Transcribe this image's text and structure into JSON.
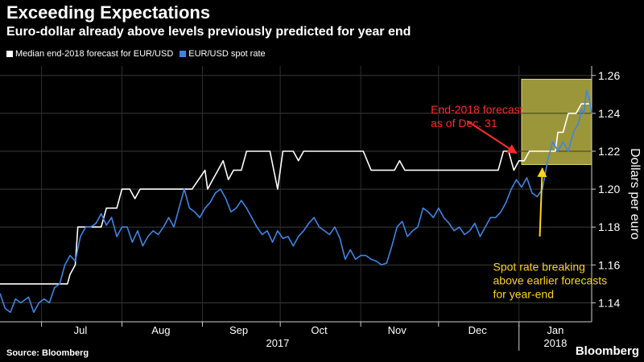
{
  "header": {
    "title": "Exceeding Expectations",
    "subtitle": "Euro-dollar already above levels previously predicted for year end"
  },
  "footer": {
    "source": "Source: Bloomberg",
    "brand": "Bloomberg"
  },
  "colors": {
    "background": "#000000",
    "forecast": "#ffffff",
    "spot": "#3d86e6",
    "highlight": "#c8c04a",
    "annotation_red": "#ff2a2a",
    "annotation_yellow": "#ffd21f"
  },
  "chart_data": {
    "type": "line",
    "title": "Exceeding Expectations",
    "subtitle": "Euro-dollar already above levels previously predicted for year end",
    "ylabel": "Dollars per euro",
    "ylim": [
      1.13,
      1.265
    ],
    "yticks": [
      1.14,
      1.16,
      1.18,
      1.2,
      1.22,
      1.24,
      1.26
    ],
    "ytick_labels": [
      "1.14",
      "1.16",
      "1.18",
      "1.20",
      "1.22",
      "1.24",
      "1.26"
    ],
    "xlim": [
      "2017-06-15",
      "2018-01-29"
    ],
    "month_ticks": [
      {
        "label": "Jul",
        "date": "2017-07-01",
        "center": "2017-07-16"
      },
      {
        "label": "Aug",
        "date": "2017-08-01",
        "center": "2017-08-16"
      },
      {
        "label": "Sep",
        "date": "2017-09-01",
        "center": "2017-09-15"
      },
      {
        "label": "Oct",
        "date": "2017-10-01",
        "center": "2017-10-16"
      },
      {
        "label": "Nov",
        "date": "2017-11-01",
        "center": "2017-11-15"
      },
      {
        "label": "Dec",
        "date": "2017-12-01",
        "center": "2017-12-16"
      },
      {
        "label": "Jan",
        "date": "2018-01-01",
        "center": "2018-01-15"
      }
    ],
    "year_labels": [
      {
        "label": "2017",
        "date": "2017-09-30"
      },
      {
        "label": "2018",
        "date": "2018-01-15"
      }
    ],
    "year_divider": "2018-01-01",
    "grid": true,
    "legend_position": "top-left",
    "series": [
      {
        "name": "Median end-2018 forecast for EUR/USD",
        "color": "#ffffff",
        "points": [
          [
            "2017-06-15",
            1.15
          ],
          [
            "2017-06-18",
            1.15
          ],
          [
            "2017-06-25",
            1.15
          ],
          [
            "2017-07-02",
            1.15
          ],
          [
            "2017-07-09",
            1.15
          ],
          [
            "2017-07-11",
            1.15
          ],
          [
            "2017-07-12",
            1.155
          ],
          [
            "2017-07-14",
            1.16
          ],
          [
            "2017-07-15",
            1.18
          ],
          [
            "2017-07-19",
            1.18
          ],
          [
            "2017-07-22",
            1.18
          ],
          [
            "2017-07-24",
            1.18
          ],
          [
            "2017-07-26",
            1.19
          ],
          [
            "2017-07-28",
            1.19
          ],
          [
            "2017-07-30",
            1.19
          ],
          [
            "2017-08-01",
            1.2
          ],
          [
            "2017-08-04",
            1.2
          ],
          [
            "2017-08-06",
            1.195
          ],
          [
            "2017-08-08",
            1.2
          ],
          [
            "2017-08-12",
            1.2
          ],
          [
            "2017-08-20",
            1.2
          ],
          [
            "2017-08-28",
            1.2
          ],
          [
            "2017-09-02",
            1.21
          ],
          [
            "2017-09-03",
            1.2
          ],
          [
            "2017-09-05",
            1.205
          ],
          [
            "2017-09-07",
            1.21
          ],
          [
            "2017-09-09",
            1.215
          ],
          [
            "2017-09-11",
            1.205
          ],
          [
            "2017-09-13",
            1.21
          ],
          [
            "2017-09-16",
            1.21
          ],
          [
            "2017-09-18",
            1.22
          ],
          [
            "2017-09-24",
            1.22
          ],
          [
            "2017-09-27",
            1.22
          ],
          [
            "2017-09-30",
            1.2
          ],
          [
            "2017-10-02",
            1.22
          ],
          [
            "2017-10-06",
            1.22
          ],
          [
            "2017-10-08",
            1.215
          ],
          [
            "2017-10-10",
            1.22
          ],
          [
            "2017-10-12",
            1.22
          ],
          [
            "2017-10-14",
            1.22
          ],
          [
            "2017-10-20",
            1.22
          ],
          [
            "2017-10-26",
            1.22
          ],
          [
            "2017-11-02",
            1.22
          ],
          [
            "2017-11-05",
            1.21
          ],
          [
            "2017-11-10",
            1.21
          ],
          [
            "2017-11-14",
            1.21
          ],
          [
            "2017-11-16",
            1.215
          ],
          [
            "2017-11-18",
            1.21
          ],
          [
            "2017-11-25",
            1.21
          ],
          [
            "2017-12-02",
            1.21
          ],
          [
            "2017-12-10",
            1.21
          ],
          [
            "2017-12-18",
            1.21
          ],
          [
            "2017-12-24",
            1.21
          ],
          [
            "2017-12-26",
            1.22
          ],
          [
            "2017-12-28",
            1.22
          ],
          [
            "2017-12-30",
            1.21
          ],
          [
            "2018-01-01",
            1.215
          ],
          [
            "2018-01-03",
            1.215
          ],
          [
            "2018-01-05",
            1.22
          ],
          [
            "2018-01-09",
            1.22
          ],
          [
            "2018-01-12",
            1.22
          ],
          [
            "2018-01-15",
            1.22
          ],
          [
            "2018-01-16",
            1.23
          ],
          [
            "2018-01-18",
            1.23
          ],
          [
            "2018-01-20",
            1.24
          ],
          [
            "2018-01-23",
            1.24
          ],
          [
            "2018-01-25",
            1.245
          ],
          [
            "2018-01-28",
            1.245
          ]
        ]
      },
      {
        "name": "EUR/USD spot rate",
        "color": "#3d86e6",
        "points": [
          [
            "2017-06-15",
            1.145
          ],
          [
            "2017-06-17",
            1.137
          ],
          [
            "2017-06-19",
            1.135
          ],
          [
            "2017-06-21",
            1.142
          ],
          [
            "2017-06-23",
            1.14
          ],
          [
            "2017-06-26",
            1.143
          ],
          [
            "2017-06-28",
            1.135
          ],
          [
            "2017-06-30",
            1.14
          ],
          [
            "2017-07-02",
            1.142
          ],
          [
            "2017-07-04",
            1.14
          ],
          [
            "2017-07-06",
            1.148
          ],
          [
            "2017-07-08",
            1.15
          ],
          [
            "2017-07-10",
            1.16
          ],
          [
            "2017-07-12",
            1.165
          ],
          [
            "2017-07-14",
            1.162
          ],
          [
            "2017-07-16",
            1.175
          ],
          [
            "2017-07-18",
            1.18
          ],
          [
            "2017-07-20",
            1.18
          ],
          [
            "2017-07-22",
            1.182
          ],
          [
            "2017-07-24",
            1.187
          ],
          [
            "2017-07-26",
            1.181
          ],
          [
            "2017-07-28",
            1.185
          ],
          [
            "2017-07-30",
            1.175
          ],
          [
            "2017-08-01",
            1.18
          ],
          [
            "2017-08-03",
            1.18
          ],
          [
            "2017-08-05",
            1.172
          ],
          [
            "2017-08-07",
            1.178
          ],
          [
            "2017-08-09",
            1.17
          ],
          [
            "2017-08-11",
            1.175
          ],
          [
            "2017-08-13",
            1.178
          ],
          [
            "2017-08-15",
            1.176
          ],
          [
            "2017-08-17",
            1.18
          ],
          [
            "2017-08-19",
            1.185
          ],
          [
            "2017-08-21",
            1.18
          ],
          [
            "2017-08-23",
            1.19
          ],
          [
            "2017-08-25",
            1.2
          ],
          [
            "2017-08-27",
            1.19
          ],
          [
            "2017-08-29",
            1.188
          ],
          [
            "2017-08-31",
            1.185
          ],
          [
            "2017-09-02",
            1.19
          ],
          [
            "2017-09-04",
            1.193
          ],
          [
            "2017-09-06",
            1.198
          ],
          [
            "2017-09-08",
            1.2
          ],
          [
            "2017-09-10",
            1.195
          ],
          [
            "2017-09-12",
            1.188
          ],
          [
            "2017-09-14",
            1.19
          ],
          [
            "2017-09-16",
            1.194
          ],
          [
            "2017-09-18",
            1.19
          ],
          [
            "2017-09-20",
            1.185
          ],
          [
            "2017-09-22",
            1.18
          ],
          [
            "2017-09-24",
            1.176
          ],
          [
            "2017-09-26",
            1.178
          ],
          [
            "2017-09-28",
            1.172
          ],
          [
            "2017-09-30",
            1.178
          ],
          [
            "2017-10-02",
            1.174
          ],
          [
            "2017-10-04",
            1.175
          ],
          [
            "2017-10-06",
            1.17
          ],
          [
            "2017-10-08",
            1.175
          ],
          [
            "2017-10-10",
            1.178
          ],
          [
            "2017-10-12",
            1.182
          ],
          [
            "2017-10-14",
            1.185
          ],
          [
            "2017-10-16",
            1.18
          ],
          [
            "2017-10-18",
            1.178
          ],
          [
            "2017-10-20",
            1.176
          ],
          [
            "2017-10-22",
            1.18
          ],
          [
            "2017-10-24",
            1.174
          ],
          [
            "2017-10-26",
            1.163
          ],
          [
            "2017-10-28",
            1.168
          ],
          [
            "2017-10-30",
            1.163
          ],
          [
            "2017-11-01",
            1.165
          ],
          [
            "2017-11-03",
            1.165
          ],
          [
            "2017-11-05",
            1.163
          ],
          [
            "2017-11-07",
            1.162
          ],
          [
            "2017-11-09",
            1.16
          ],
          [
            "2017-11-11",
            1.161
          ],
          [
            "2017-11-13",
            1.17
          ],
          [
            "2017-11-15",
            1.18
          ],
          [
            "2017-11-17",
            1.183
          ],
          [
            "2017-11-19",
            1.175
          ],
          [
            "2017-11-21",
            1.178
          ],
          [
            "2017-11-23",
            1.18
          ],
          [
            "2017-11-25",
            1.19
          ],
          [
            "2017-11-27",
            1.188
          ],
          [
            "2017-11-29",
            1.185
          ],
          [
            "2017-12-01",
            1.19
          ],
          [
            "2017-12-03",
            1.185
          ],
          [
            "2017-12-05",
            1.182
          ],
          [
            "2017-12-07",
            1.178
          ],
          [
            "2017-12-09",
            1.18
          ],
          [
            "2017-12-11",
            1.176
          ],
          [
            "2017-12-13",
            1.178
          ],
          [
            "2017-12-15",
            1.182
          ],
          [
            "2017-12-17",
            1.175
          ],
          [
            "2017-12-19",
            1.18
          ],
          [
            "2017-12-21",
            1.185
          ],
          [
            "2017-12-23",
            1.185
          ],
          [
            "2017-12-25",
            1.188
          ],
          [
            "2017-12-27",
            1.193
          ],
          [
            "2017-12-29",
            1.2
          ],
          [
            "2017-12-31",
            1.205
          ],
          [
            "2018-01-02",
            1.201
          ],
          [
            "2018-01-04",
            1.206
          ],
          [
            "2018-01-06",
            1.198
          ],
          [
            "2018-01-08",
            1.196
          ],
          [
            "2018-01-10",
            1.2
          ],
          [
            "2018-01-12",
            1.215
          ],
          [
            "2018-01-14",
            1.225
          ],
          [
            "2018-01-16",
            1.22
          ],
          [
            "2018-01-18",
            1.225
          ],
          [
            "2018-01-20",
            1.22
          ],
          [
            "2018-01-22",
            1.23
          ],
          [
            "2018-01-24",
            1.235
          ],
          [
            "2018-01-25",
            1.242
          ],
          [
            "2018-01-26",
            1.24
          ],
          [
            "2018-01-27",
            1.252
          ],
          [
            "2018-01-28",
            1.248
          ],
          [
            "2018-01-29",
            1.24
          ]
        ]
      }
    ],
    "highlight_box": {
      "x": [
        "2018-01-02",
        "2018-01-29"
      ],
      "y": [
        1.213,
        1.258
      ]
    },
    "annotations": [
      {
        "name": "end-2018-forecast",
        "lines": [
          "End-2018 forecast",
          "as of Dec. 31"
        ],
        "color": "#ff2a2a",
        "text_at": [
          "2017-11-28",
          1.24
        ],
        "arrow_from": [
          "2017-12-12",
          1.236
        ],
        "arrow_to": [
          "2017-12-31",
          1.219
        ]
      },
      {
        "name": "spot-rate-breaking",
        "lines": [
          "Spot rate breaking",
          "above earlier forecasts",
          "for year-end"
        ],
        "color": "#ffd21f",
        "text_at": [
          "2017-12-22",
          1.157
        ],
        "arrow_from": [
          "2018-01-09",
          1.175
        ],
        "arrow_to": [
          "2018-01-10",
          1.211
        ]
      }
    ]
  }
}
